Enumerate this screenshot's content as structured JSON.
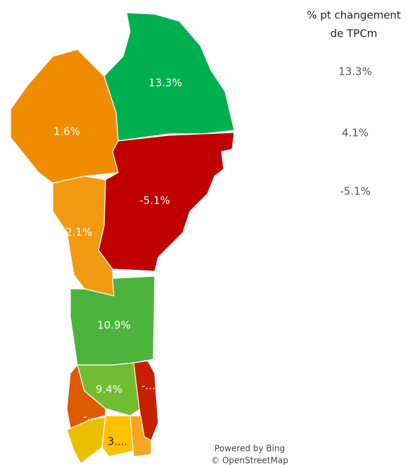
{
  "legend": {
    "title": [
      "% pt changement",
      "de TPCm"
    ],
    "labels": [
      "13.3%",
      "4.1%",
      "-5.1%"
    ]
  },
  "regions": [
    {
      "label": "13.3%",
      "color": "#00b050"
    },
    {
      "label": "1.6%",
      "color": "#f08c00"
    },
    {
      "label": "-5.1%",
      "color": "#c00000"
    },
    {
      "label": "2.1%",
      "color": "#f29b12"
    },
    {
      "label": "10.9%",
      "color": "#4cb43c"
    },
    {
      "label": "9.4%",
      "color": "#72bc32"
    },
    {
      "label": "-...",
      "color": "#c82000"
    },
    {
      "label": "-...",
      "color": "#e05a00"
    },
    {
      "color": "#e8c000"
    },
    {
      "label": "3....",
      "color": "#ffc000"
    },
    {
      "color": "#f5a623"
    }
  ],
  "attribution": [
    "Powered by Bing",
    "© OpenStreetMap"
  ]
}
